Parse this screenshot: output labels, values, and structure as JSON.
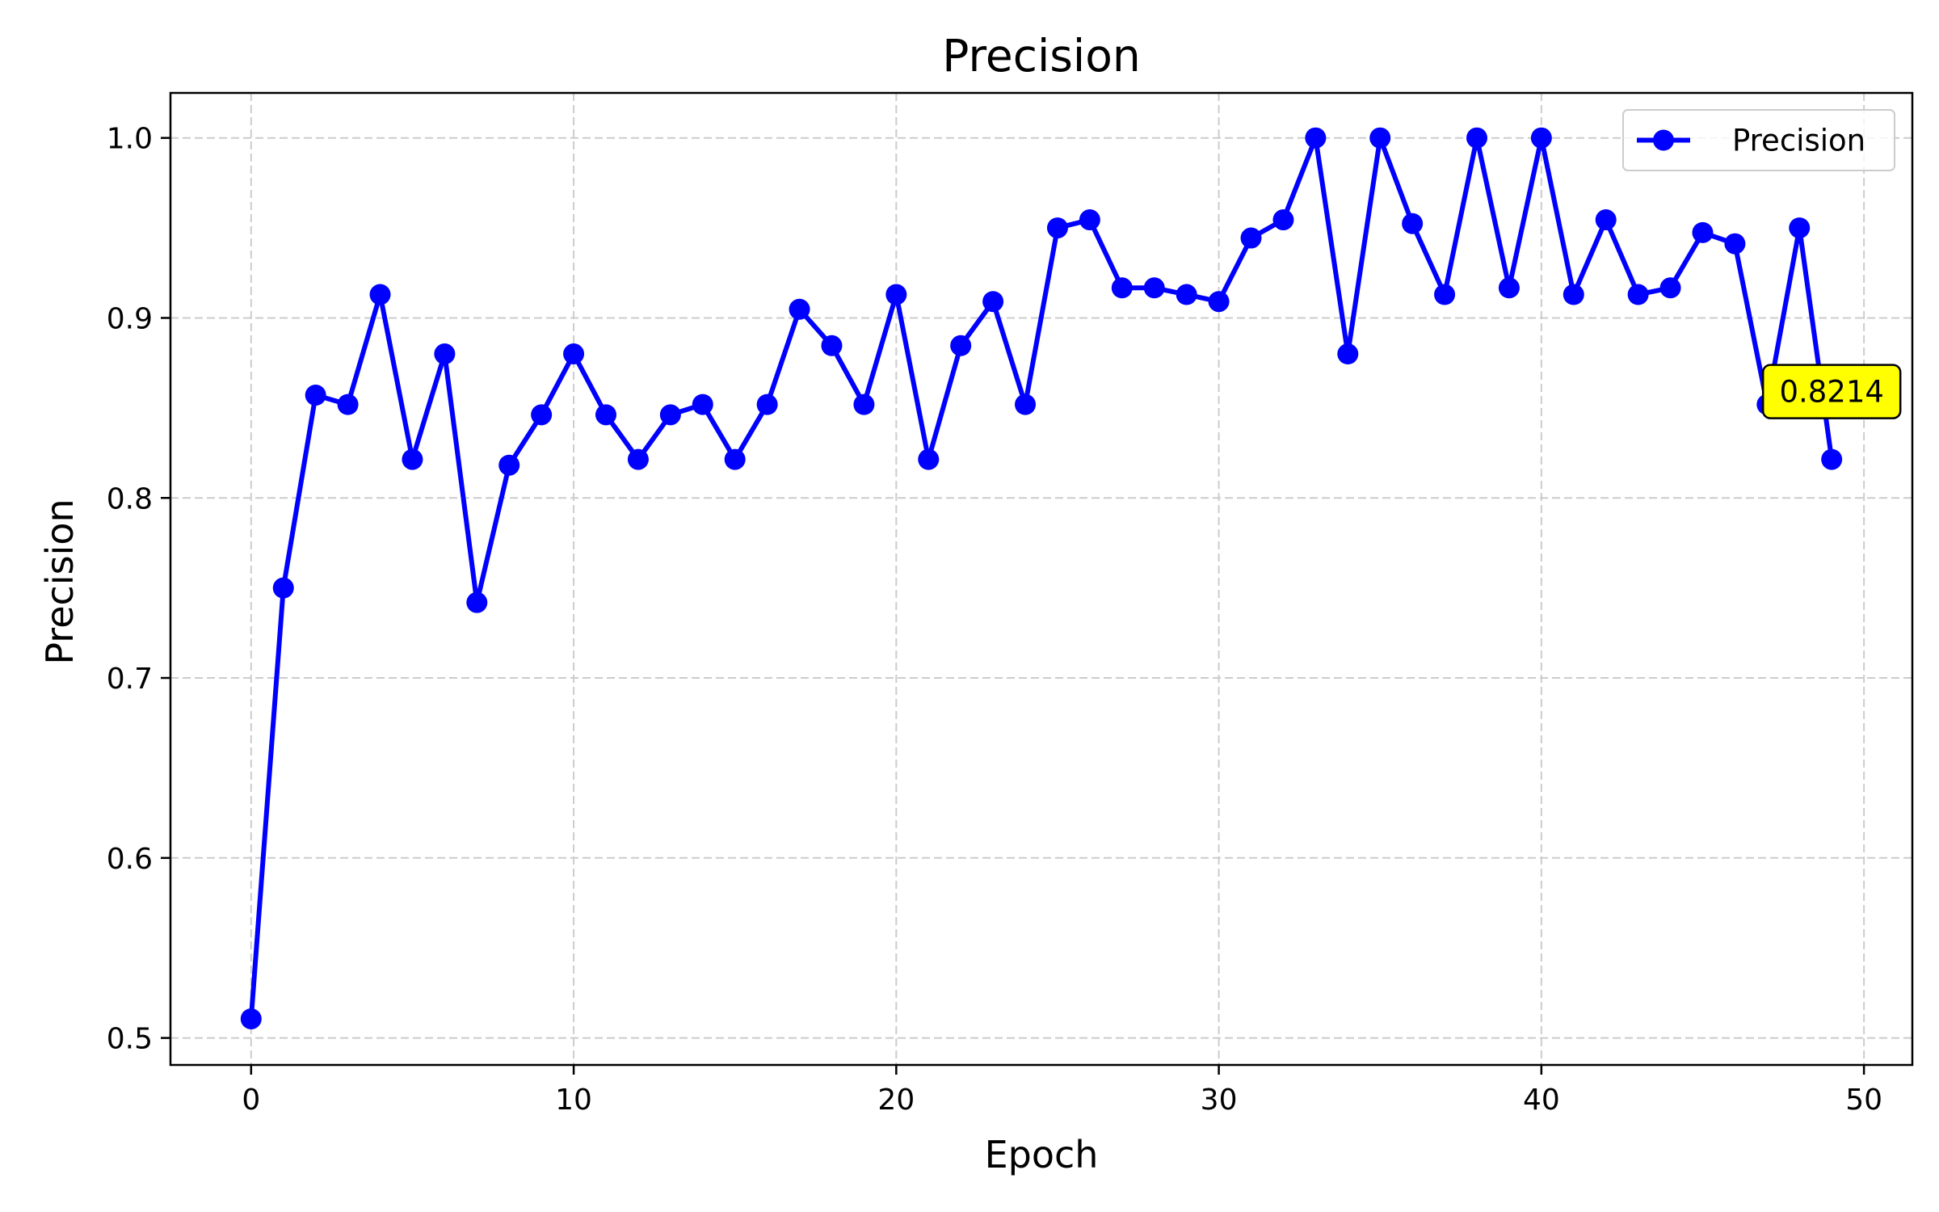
{
  "chart_data": {
    "type": "line",
    "title": "Precision",
    "xlabel": "Epoch",
    "ylabel": "Precision",
    "xlim": [
      -2.5,
      51.5
    ],
    "ylim": [
      0.485,
      1.025
    ],
    "x_ticks": [
      0,
      10,
      20,
      30,
      40,
      50
    ],
    "x_tick_labels": [
      "0",
      "10",
      "20",
      "30",
      "40",
      "50"
    ],
    "y_ticks": [
      0.5,
      0.6,
      0.7,
      0.8,
      0.9,
      1.0
    ],
    "y_tick_labels": [
      "0.5",
      "0.6",
      "0.7",
      "0.8",
      "0.9",
      "1.0"
    ],
    "grid": true,
    "legend_position": "top-right",
    "series": [
      {
        "name": "Precision",
        "color": "#0000ff",
        "marker": "circle",
        "x": [
          0,
          1,
          2,
          3,
          4,
          5,
          6,
          7,
          8,
          9,
          10,
          11,
          12,
          13,
          14,
          15,
          16,
          17,
          18,
          19,
          20,
          21,
          22,
          23,
          24,
          25,
          26,
          27,
          28,
          29,
          30,
          31,
          32,
          33,
          34,
          35,
          36,
          37,
          38,
          39,
          40,
          41,
          42,
          43,
          44,
          45,
          46,
          47,
          48,
          49
        ],
        "y": [
          0.5106,
          0.75,
          0.8571,
          0.8519,
          0.913,
          0.8214,
          0.88,
          0.7419,
          0.8182,
          0.8462,
          0.88,
          0.8462,
          0.8214,
          0.8462,
          0.8519,
          0.8214,
          0.8519,
          0.9048,
          0.8846,
          0.8519,
          0.913,
          0.8214,
          0.8846,
          0.9091,
          0.8519,
          0.95,
          0.9545,
          0.9167,
          0.9167,
          0.913,
          0.9091,
          0.9444,
          0.9545,
          1.0,
          0.88,
          1.0,
          0.9524,
          0.913,
          1.0,
          0.9167,
          1.0,
          0.913,
          0.9545,
          0.913,
          0.9167,
          0.9474,
          0.9412,
          0.8519,
          0.95,
          0.8214
        ]
      }
    ],
    "annotations": [
      {
        "x": 49,
        "y": 0.8214,
        "text": "0.8214",
        "background": "#ffff00"
      }
    ]
  }
}
